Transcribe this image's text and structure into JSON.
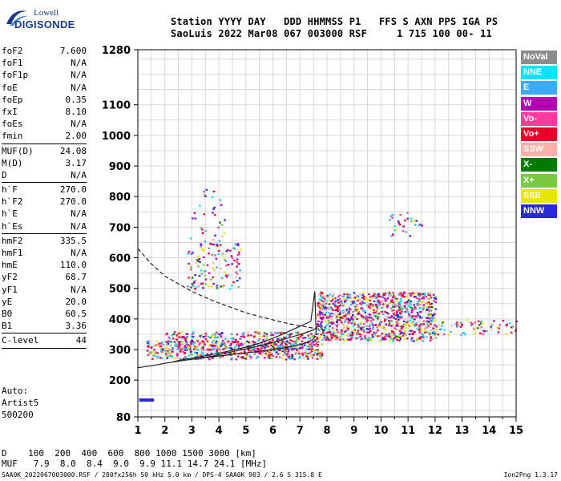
{
  "logo": {
    "line1": "Lowell",
    "line2": "DIGISONDE"
  },
  "header": {
    "line1": "Station YYYY DAY   DDD HHMMSS P1   FFS S AXN PPS IGA PS",
    "line2": "SaoLuis 2022 Mar08 067 003000 RSF     1 715 100 00- 11"
  },
  "params": {
    "group1": [
      {
        "name": "foF2",
        "value": "7.600"
      },
      {
        "name": "foF1",
        "value": "N/A"
      },
      {
        "name": "foF1p",
        "value": "N/A"
      },
      {
        "name": "foE",
        "value": "N/A"
      },
      {
        "name": "foEp",
        "value": "0.35"
      },
      {
        "name": "fxI",
        "value": "8.10"
      },
      {
        "name": "foEs",
        "value": "N/A"
      },
      {
        "name": "fmin",
        "value": "2.00"
      }
    ],
    "group2": [
      {
        "name": "MUF(D)",
        "value": "24.08"
      },
      {
        "name": "M(D)",
        "value": "3.17"
      },
      {
        "name": "D",
        "value": "N/A"
      }
    ],
    "group3": [
      {
        "name": "h`F",
        "value": "270.0"
      },
      {
        "name": "h`F2",
        "value": "270.0"
      },
      {
        "name": "h`E",
        "value": "N/A"
      },
      {
        "name": "h`Es",
        "value": "N/A"
      }
    ],
    "group4": [
      {
        "name": "hmF2",
        "value": "335.5"
      },
      {
        "name": "hmF1",
        "value": "N/A"
      },
      {
        "name": "hmE",
        "value": "110.0"
      },
      {
        "name": "yF2",
        "value": "68.7"
      },
      {
        "name": "yF1",
        "value": "N/A"
      },
      {
        "name": "yE",
        "value": "20.0"
      },
      {
        "name": "B0",
        "value": "60.5"
      },
      {
        "name": "B1",
        "value": "3.36"
      }
    ],
    "clevel": {
      "name": "C-level",
      "value": "44"
    }
  },
  "auto": {
    "line1": "Auto:",
    "line2": "Artist5",
    "line3": "500200"
  },
  "legend": [
    {
      "label": "NoVal",
      "color": "#8c8c8c"
    },
    {
      "label": "NNE",
      "color": "#00e5ff"
    },
    {
      "label": "E",
      "color": "#3fa9f5"
    },
    {
      "label": "W",
      "color": "#b000b0"
    },
    {
      "label": "Vo-",
      "color": "#ff3c9a"
    },
    {
      "label": "Vo+",
      "color": "#e8002a"
    },
    {
      "label": "SSW",
      "color": "#ffb0a8"
    },
    {
      "label": "X-",
      "color": "#007a00"
    },
    {
      "label": "X+",
      "color": "#7ac943"
    },
    {
      "label": "SSE",
      "color": "#e6e600"
    },
    {
      "label": "NNW",
      "color": "#2a2ad4"
    }
  ],
  "dmuf": {
    "d_line": "D    100  200  400  600  800 1000 1500 3000 [km]",
    "muf_line": "MUF   7.9  8.0  8.4  9.0  9.9 11.1 14.7 24.1 [MHz]"
  },
  "footer": "SAA0K_2022067003000.RSF / 280fx256h 50 kHz 5.0 km / DPS-4 SAA0K 903 / 2.6 S 315.8 E",
  "version": "Ion2Png 1.3.17",
  "chart_data": {
    "type": "scatter",
    "xlim": [
      1,
      15
    ],
    "ylim": [
      80,
      1280
    ],
    "x_ticks": [
      1,
      2,
      3,
      4,
      5,
      6,
      7,
      8,
      9,
      10,
      11,
      12,
      13,
      14,
      15
    ],
    "y_ticks": [
      80,
      200,
      300,
      400,
      500,
      600,
      700,
      800,
      900,
      1000,
      1100,
      1280
    ],
    "y_tick_labels": [
      "80",
      "200",
      "300",
      "400",
      "500",
      "600",
      "700",
      "800",
      "900",
      "1000",
      "1100",
      "1280"
    ],
    "grid": true,
    "traces": [
      {
        "name": "profile",
        "x": [
          1.0,
          1.5,
          2.0,
          2.5,
          3.0,
          3.5,
          4.0,
          4.5,
          5.0,
          5.5,
          6.0,
          6.5,
          7.0,
          7.3,
          7.5,
          7.6
        ],
        "y": [
          241,
          247,
          255,
          262,
          268,
          274,
          279,
          284,
          289,
          294,
          300,
          307,
          316,
          324,
          335,
          345
        ]
      },
      {
        "name": "model-h",
        "x": [
          2.3,
          2.6,
          3.0,
          3.4,
          3.8,
          4.2,
          4.6,
          5.0,
          5.4,
          5.8,
          6.2,
          6.6,
          6.9,
          7.2,
          7.4,
          7.55,
          7.6
        ],
        "y": [
          260,
          266,
          272,
          278,
          285,
          292,
          300,
          308,
          318,
          330,
          344,
          360,
          372,
          384,
          392,
          490,
          350
        ]
      },
      {
        "name": "x-trace",
        "x": [
          3.0,
          3.5,
          4.0,
          4.5,
          5.0,
          5.5,
          6.0,
          6.5,
          7.0,
          7.5,
          7.7
        ],
        "y": [
          268,
          274,
          283,
          293,
          302,
          312,
          323,
          336,
          349,
          364,
          378
        ]
      },
      {
        "name": "muf-dashed",
        "x": [
          1.0,
          1.5,
          2.0,
          2.5,
          3.0,
          3.5,
          4.0,
          4.5,
          5.0,
          5.5,
          6.0,
          6.5,
          7.0,
          7.5,
          8.0
        ],
        "y": [
          630,
          580,
          540,
          515,
          490,
          470,
          452,
          436,
          420,
          408,
          397,
          386,
          378,
          370,
          362
        ]
      }
    ],
    "clusters": [
      {
        "x": [
          1.3,
          7.8
        ],
        "y": [
          270,
          330
        ],
        "density": 9
      },
      {
        "x": [
          2.0,
          7.6
        ],
        "y": [
          300,
          360
        ],
        "density": 7
      },
      {
        "x": [
          7.6,
          12.0
        ],
        "y": [
          330,
          490
        ],
        "density": 10
      },
      {
        "x": [
          12.0,
          15.0
        ],
        "y": [
          350,
          400
        ],
        "density": 3
      },
      {
        "x": [
          2.8,
          4.8
        ],
        "y": [
          500,
          650
        ],
        "density": 3
      },
      {
        "x": [
          2.9,
          4.2
        ],
        "y": [
          650,
          830
        ],
        "density": 1
      },
      {
        "x": [
          10.2,
          11.5
        ],
        "y": [
          670,
          750
        ],
        "density": 2
      }
    ],
    "marker": {
      "x": [
        1.05,
        1.6
      ],
      "y": [
        135,
        135
      ],
      "color": "#2a2ad4"
    }
  }
}
